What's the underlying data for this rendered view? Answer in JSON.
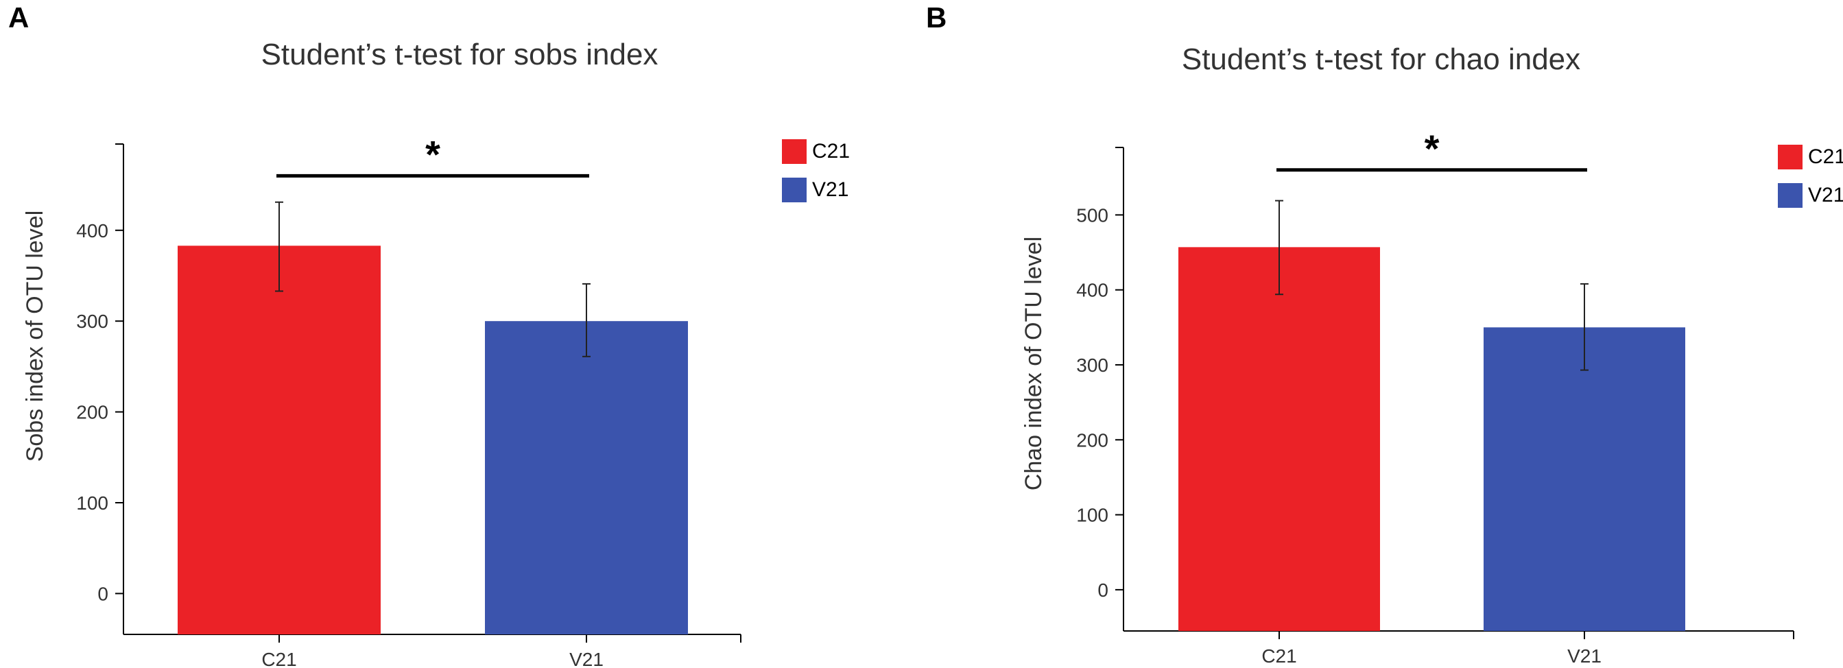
{
  "panels": [
    {
      "letter": "A",
      "legend": [
        {
          "label": "C21",
          "color": "#eb2227"
        },
        {
          "label": "V21",
          "color": "#3b54ad"
        }
      ],
      "chart_data": {
        "type": "bar",
        "title": "Student’s t-test for sobs index",
        "xlabel": "",
        "ylabel": "Sobs index of OTU level",
        "categories": [
          "C21",
          "V21"
        ],
        "values": [
          383,
          300
        ],
        "errors": [
          [
            333,
            431
          ],
          [
            261,
            341
          ]
        ],
        "colors": [
          "#eb2227",
          "#3b54ad"
        ],
        "ylim": [
          -45,
          495
        ],
        "yticks": [
          0,
          100,
          200,
          300,
          400
        ],
        "significance": {
          "between": [
            "C21",
            "V21"
          ],
          "label": "*",
          "level": 460
        }
      }
    },
    {
      "letter": "B",
      "legend": [
        {
          "label": "C21",
          "color": "#eb2227"
        },
        {
          "label": "V21",
          "color": "#3b54ad"
        }
      ],
      "chart_data": {
        "type": "bar",
        "title": "Student’s t-test for chao index",
        "xlabel": "",
        "ylabel": "Chao index of OTU level",
        "categories": [
          "C21",
          "V21"
        ],
        "values": [
          457,
          350
        ],
        "errors": [
          [
            394,
            519
          ],
          [
            293,
            408
          ]
        ],
        "colors": [
          "#eb2227",
          "#3b54ad"
        ],
        "ylim": [
          -55,
          590
        ],
        "yticks": [
          0,
          100,
          200,
          300,
          400,
          500
        ],
        "significance": {
          "between": [
            "C21",
            "V21"
          ],
          "label": "*",
          "level": 560
        }
      }
    }
  ]
}
